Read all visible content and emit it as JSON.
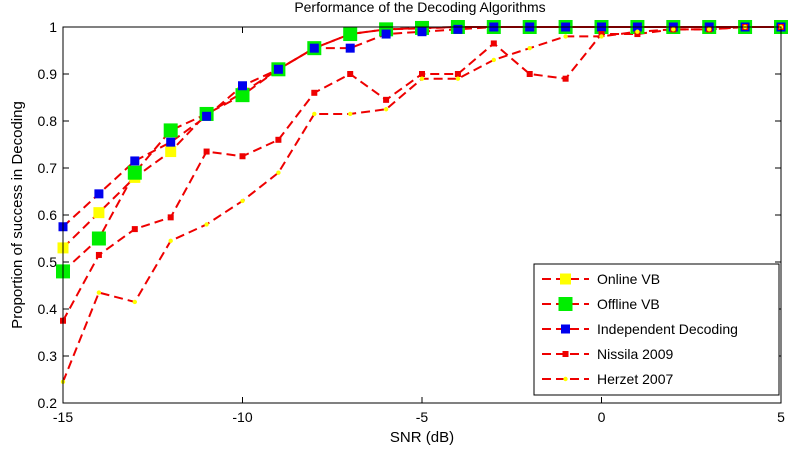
{
  "chart_data": {
    "type": "line",
    "title": "Performance of the Decoding Algorithms",
    "xlabel": "SNR (dB)",
    "ylabel": "Proportion of success in Decoding",
    "xlim": [
      -15,
      5
    ],
    "ylim": [
      0.2,
      1.0
    ],
    "x_ticks": [
      -15,
      -10,
      -5,
      0,
      5
    ],
    "y_ticks": [
      0.2,
      0.3,
      0.4,
      0.5,
      0.6,
      0.7,
      0.8,
      0.9,
      1.0
    ],
    "x_tick_labels": [
      "-15",
      "-10",
      "-5",
      "0",
      "5"
    ],
    "y_tick_labels": [
      "0.2",
      "0.3",
      "0.4",
      "0.5",
      "0.6",
      "0.7",
      "0.8",
      "0.9",
      "1"
    ],
    "legend_placement": "bottom-right",
    "series": [
      {
        "name": "Online VB",
        "color": "#ffff00",
        "marker": "square",
        "marker_size": "medium",
        "x": [
          -15,
          -14,
          -13,
          -12,
          -11,
          -10,
          -9,
          -8,
          -7,
          -6,
          -5,
          -4,
          -3,
          -2,
          -1,
          0,
          1,
          2,
          3,
          4,
          5
        ],
        "y": [
          0.53,
          0.605,
          0.68,
          0.735,
          0.815,
          0.86,
          0.91,
          0.955,
          0.985,
          0.995,
          0.997,
          1.0,
          1.0,
          1.0,
          1.0,
          1.0,
          1.0,
          1.0,
          1.0,
          1.0,
          1.0
        ]
      },
      {
        "name": "Offline VB",
        "color": "#00ee00",
        "marker": "square",
        "marker_size": "large",
        "x": [
          -15,
          -14,
          -13,
          -12,
          -11,
          -10,
          -9,
          -8,
          -7,
          -6,
          -5,
          -4,
          -3,
          -2,
          -1,
          0,
          1,
          2,
          3,
          4,
          5
        ],
        "y": [
          0.48,
          0.55,
          0.69,
          0.78,
          0.815,
          0.855,
          0.91,
          0.955,
          0.985,
          0.995,
          0.998,
          1.0,
          1.0,
          1.0,
          1.0,
          1.0,
          1.0,
          1.0,
          1.0,
          1.0,
          1.0
        ]
      },
      {
        "name": "Independent Decoding",
        "color": "#0000ee",
        "marker": "square",
        "marker_size": "small",
        "x": [
          -15,
          -14,
          -13,
          -12,
          -11,
          -10,
          -9,
          -8,
          -7,
          -6,
          -5,
          -4,
          -3,
          -2,
          -1,
          0,
          1,
          2,
          3,
          4,
          5
        ],
        "y": [
          0.575,
          0.645,
          0.715,
          0.755,
          0.81,
          0.875,
          0.91,
          0.955,
          0.955,
          0.985,
          0.99,
          0.995,
          1.0,
          1.0,
          1.0,
          1.0,
          1.0,
          1.0,
          1.0,
          1.0,
          1.0
        ]
      },
      {
        "name": "Nissila 2009",
        "color": "#ee0000",
        "marker": "square",
        "marker_size": "tiny",
        "x": [
          -15,
          -14,
          -13,
          -12,
          -11,
          -10,
          -9,
          -8,
          -7,
          -6,
          -5,
          -4,
          -3,
          -2,
          -1,
          0,
          1,
          2,
          3,
          4,
          5
        ],
        "y": [
          0.375,
          0.515,
          0.57,
          0.595,
          0.735,
          0.725,
          0.76,
          0.86,
          0.9,
          0.845,
          0.9,
          0.9,
          0.965,
          0.9,
          0.89,
          0.985,
          0.985,
          0.995,
          0.995,
          1.0,
          1.0
        ]
      },
      {
        "name": "Herzet 2007",
        "color": "#ffff00",
        "marker": "dot",
        "marker_size": "tiny",
        "x": [
          -15,
          -14,
          -13,
          -12,
          -11,
          -10,
          -9,
          -8,
          -7,
          -6,
          -5,
          -4,
          -3,
          -2,
          -1,
          0,
          1,
          2,
          3,
          4,
          5
        ],
        "y": [
          0.245,
          0.435,
          0.415,
          0.545,
          0.58,
          0.63,
          0.69,
          0.815,
          0.815,
          0.825,
          0.89,
          0.89,
          0.93,
          0.955,
          0.98,
          0.98,
          0.99,
          0.995,
          0.995,
          1.0,
          1.0
        ]
      }
    ]
  }
}
